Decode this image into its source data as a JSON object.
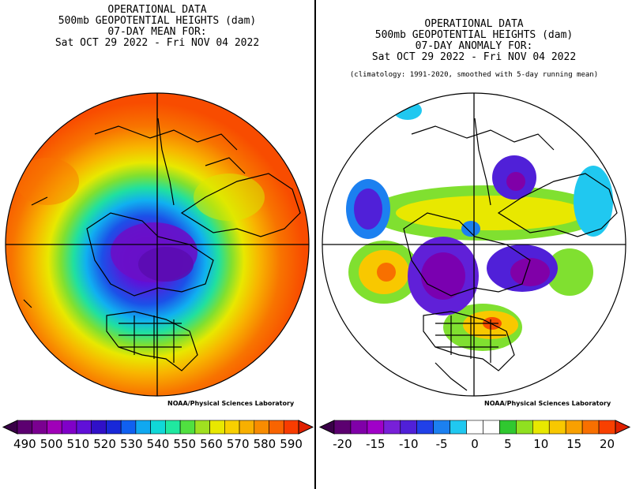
{
  "left": {
    "title_lines": [
      "OPERATIONAL DATA",
      "500mb GEOPOTENTIAL HEIGHTS (dam)",
      "07-DAY MEAN FOR:",
      "Sat OCT 29 2022 - Fri NOV 04 2022"
    ],
    "credit": "NOAA/Physical Sciences Laboratory",
    "colorbar": {
      "colors": [
        "#5c0070",
        "#7a0090",
        "#a000b8",
        "#8000c8",
        "#6010d8",
        "#3010c8",
        "#1828d8",
        "#1060f0",
        "#10a8f0",
        "#10d8d8",
        "#20e8a0",
        "#50e040",
        "#a0e020",
        "#e8e800",
        "#f8d000",
        "#f8b000",
        "#f88c00",
        "#f86400",
        "#f83c00"
      ],
      "left_arrow": "#3a0048",
      "right_arrow": "#e02000",
      "labels": [
        "490",
        "500",
        "510",
        "520",
        "530",
        "540",
        "550",
        "560",
        "570",
        "580",
        "590"
      ]
    }
  },
  "right": {
    "title_lines": [
      "OPERATIONAL DATA",
      "500mb GEOPOTENTIAL HEIGHTS (dam)",
      "07-DAY ANOMALY FOR:",
      "Sat OCT 29 2022 - Fri NOV 04 2022"
    ],
    "subtitle": "(climatology: 1991-2020, smoothed with 5-day running mean)",
    "credit": "NOAA/Physical Sciences Laboratory",
    "colorbar": {
      "colors": [
        "#5c0070",
        "#8000a8",
        "#a000c8",
        "#7820d8",
        "#5020d8",
        "#2040e8",
        "#1c80f0",
        "#20c8f0",
        "#ffffff",
        "#ffffff",
        "#30c830",
        "#90e020",
        "#e8e800",
        "#f8c800",
        "#f8a000",
        "#f87000",
        "#f84000"
      ],
      "left_arrow": "#3a0048",
      "right_arrow": "#e02000",
      "labels": [
        "-20",
        "-15",
        "-10",
        "-5",
        "0",
        "5",
        "10",
        "15",
        "20"
      ]
    }
  }
}
